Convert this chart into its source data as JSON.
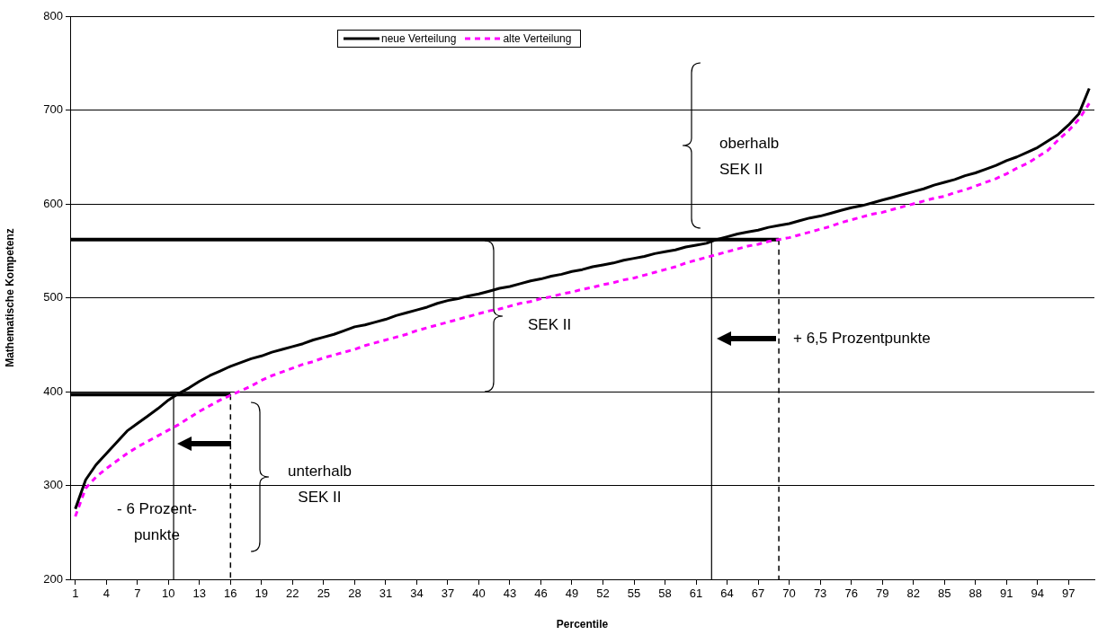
{
  "chart_data": {
    "type": "line",
    "xlabel": "Percentile",
    "ylabel": "Mathematische Kompetenz",
    "x": [
      1,
      2,
      3,
      4,
      5,
      6,
      7,
      8,
      9,
      10,
      11,
      12,
      13,
      14,
      15,
      16,
      17,
      18,
      19,
      20,
      21,
      22,
      23,
      24,
      25,
      26,
      27,
      28,
      29,
      30,
      31,
      32,
      33,
      34,
      35,
      36,
      37,
      38,
      39,
      40,
      41,
      42,
      43,
      44,
      45,
      46,
      47,
      48,
      49,
      50,
      51,
      52,
      53,
      54,
      55,
      56,
      57,
      58,
      59,
      60,
      61,
      62,
      63,
      64,
      65,
      66,
      67,
      68,
      69,
      70,
      71,
      72,
      73,
      74,
      75,
      76,
      77,
      78,
      79,
      80,
      81,
      82,
      83,
      84,
      85,
      86,
      87,
      88,
      89,
      90,
      91,
      92,
      93,
      94,
      95,
      96,
      97,
      98,
      99
    ],
    "xlim": [
      0.5,
      99.5
    ],
    "xticks": [
      1,
      4,
      7,
      10,
      13,
      16,
      19,
      22,
      25,
      28,
      31,
      34,
      37,
      40,
      43,
      46,
      49,
      52,
      55,
      58,
      61,
      64,
      67,
      70,
      73,
      76,
      79,
      82,
      85,
      88,
      91,
      94,
      97
    ],
    "ylim": [
      200,
      800
    ],
    "yticks": [
      200,
      300,
      400,
      500,
      600,
      700,
      800
    ],
    "grid": "y",
    "legend": "top",
    "marker": "none",
    "series": [
      {
        "name": "neue Verteilung",
        "color": "#000000",
        "line_style": "solid",
        "values": [
          275,
          306,
          322,
          334,
          346,
          358,
          366,
          374,
          382,
          391,
          398,
          404,
          411,
          417,
          422,
          427,
          431,
          435,
          438,
          442,
          445,
          448,
          451,
          455,
          458,
          461,
          465,
          469,
          471,
          474,
          477,
          481,
          484,
          487,
          490,
          494,
          497,
          499,
          502,
          504,
          507,
          510,
          512,
          515,
          518,
          520,
          523,
          525,
          528,
          530,
          533,
          535,
          537,
          540,
          542,
          544,
          547,
          549,
          551,
          554,
          556,
          558,
          562,
          565,
          568,
          570,
          572,
          575,
          577,
          579,
          582,
          585,
          587,
          590,
          593,
          596,
          598,
          601,
          604,
          607,
          610,
          613,
          616,
          620,
          623,
          626,
          630,
          633,
          637,
          641,
          646,
          650,
          655,
          660,
          667,
          674,
          684,
          696,
          723
        ]
      },
      {
        "name": "alte Verteilung",
        "color": "#ff00ff",
        "line_style": "dashed",
        "values": [
          267,
          297,
          309,
          318,
          326,
          334,
          341,
          347,
          353,
          359,
          365,
          372,
          379,
          385,
          391,
          396,
          401,
          406,
          412,
          417,
          421,
          425,
          429,
          432,
          436,
          439,
          442,
          445,
          449,
          452,
          455,
          458,
          461,
          465,
          468,
          471,
          474,
          477,
          480,
          483,
          486,
          488,
          491,
          494,
          496,
          499,
          501,
          504,
          506,
          509,
          511,
          514,
          516,
          519,
          521,
          524,
          527,
          530,
          533,
          537,
          540,
          543,
          546,
          549,
          552,
          555,
          557,
          560,
          562,
          564,
          567,
          570,
          573,
          576,
          580,
          583,
          586,
          589,
          591,
          594,
          597,
          600,
          603,
          606,
          608,
          612,
          615,
          619,
          623,
          627,
          632,
          638,
          643,
          650,
          657,
          668,
          678,
          690,
          707
        ]
      },
      {
        "color": "#000000",
        "line_style": "solid",
        "x": [
          0.5,
          69
        ],
        "values": [
          562,
          562
        ]
      },
      {
        "color": "#000000",
        "line_style": "dashed",
        "x": [
          69,
          69
        ],
        "values": [
          562,
          200
        ]
      },
      {
        "color": "#000000",
        "line_style": "solid",
        "x": [
          62.5,
          62.5
        ],
        "values": [
          562,
          200
        ]
      },
      {
        "color": "#000000",
        "line_style": "solid",
        "x": [
          0.5,
          16
        ],
        "values": [
          397,
          397
        ]
      },
      {
        "color": "#000000",
        "line_style": "dashed",
        "x": [
          16,
          16
        ],
        "values": [
          397,
          200
        ]
      },
      {
        "color": "#000000",
        "line_style": "solid",
        "x": [
          10.5,
          10.5
        ],
        "values": [
          397,
          200
        ]
      }
    ],
    "annotations": [
      "oberhalb\nSEK II",
      "SEK II",
      "unterhalb\nSEK II",
      "- 6 Prozent-\npunkte",
      "+ 6,5 Prozentpunkte"
    ]
  }
}
